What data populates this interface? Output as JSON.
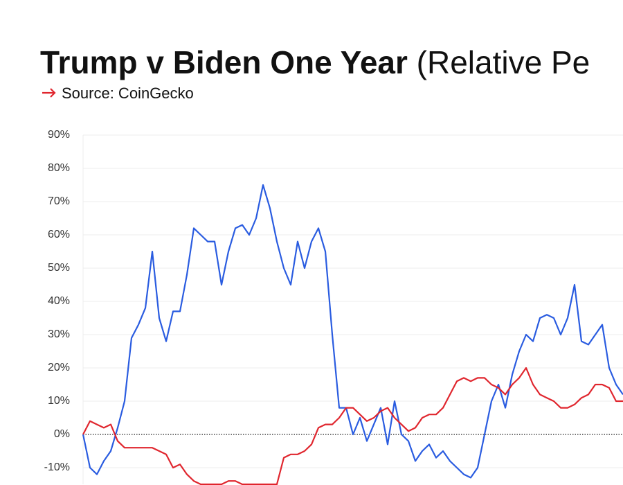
{
  "chart_data": {
    "type": "line",
    "title": [
      "Trump v Biden One Year ",
      "(Relative Pe"
    ],
    "source": "Source: CoinGecko",
    "categories": [
      null,
      null,
      null,
      null,
      null,
      null,
      null,
      null,
      null,
      null,
      null,
      null,
      null,
      null,
      null,
      null,
      null,
      null,
      null,
      null,
      null,
      null,
      null,
      null,
      null,
      null,
      null,
      null,
      null,
      null,
      null,
      null,
      null,
      null,
      null,
      null,
      null,
      null,
      null,
      null,
      null,
      null,
      null,
      null,
      null,
      null,
      null,
      null,
      null,
      null,
      null,
      null,
      null,
      null,
      null,
      null,
      null,
      null,
      null,
      null,
      null,
      null,
      null,
      null,
      null,
      null,
      null,
      null,
      null,
      null,
      null,
      null,
      null,
      null,
      null,
      null,
      null,
      null,
      null
    ],
    "series": [
      {
        "color": "#2a5ce0",
        "values": [
          0,
          -10,
          -12,
          -8,
          -5,
          2,
          10,
          29,
          33,
          38,
          55,
          35,
          28,
          37,
          37,
          48,
          62,
          60,
          58,
          58,
          45,
          55,
          62,
          63,
          60,
          65,
          75,
          68,
          58,
          50,
          45,
          58,
          50,
          58,
          62,
          55,
          30,
          8,
          8,
          0,
          5,
          -2,
          3,
          8,
          -3,
          10,
          0,
          -2,
          -8,
          -5,
          -3,
          -7,
          -5,
          -8,
          -10,
          -12,
          -13,
          -10,
          0,
          10,
          15,
          8,
          18,
          25,
          30,
          28,
          35,
          36,
          35,
          30,
          35,
          45,
          28,
          27,
          30,
          33,
          20,
          15,
          12
        ]
      },
      {
        "color": "#e0262e",
        "values": [
          0,
          4,
          3,
          2,
          3,
          -2,
          -4,
          -4,
          -4,
          -4,
          -4,
          -5,
          -6,
          -10,
          -9,
          -12,
          -14,
          -15,
          -15,
          -15,
          -15,
          -14,
          -14,
          -15,
          -15,
          -15,
          -15,
          -15,
          -15,
          -7,
          -6,
          -6,
          -5,
          -3,
          2,
          3,
          3,
          5,
          8,
          8,
          6,
          4,
          5,
          7,
          8,
          5,
          3,
          1,
          2,
          5,
          6,
          6,
          8,
          12,
          16,
          17,
          16,
          17,
          17,
          15,
          14,
          12,
          15,
          17,
          20,
          15,
          12,
          11,
          10,
          8,
          8,
          9,
          11,
          12,
          15,
          15,
          14,
          10,
          10
        ]
      }
    ],
    "ylim": [
      -15,
      90
    ],
    "yticks": [
      {
        "value": 90,
        "label": "90%"
      },
      {
        "value": 80,
        "label": "80%"
      },
      {
        "value": 70,
        "label": "70%"
      },
      {
        "value": 60,
        "label": "60%"
      },
      {
        "value": 50,
        "label": "50%"
      },
      {
        "value": 40,
        "label": "40%"
      },
      {
        "value": 30,
        "label": "30%"
      },
      {
        "value": 20,
        "label": "20%"
      },
      {
        "value": 10,
        "label": "10%"
      },
      {
        "value": 0,
        "label": "0%"
      },
      {
        "value": -10,
        "label": "-10%"
      }
    ],
    "grid": true
  }
}
